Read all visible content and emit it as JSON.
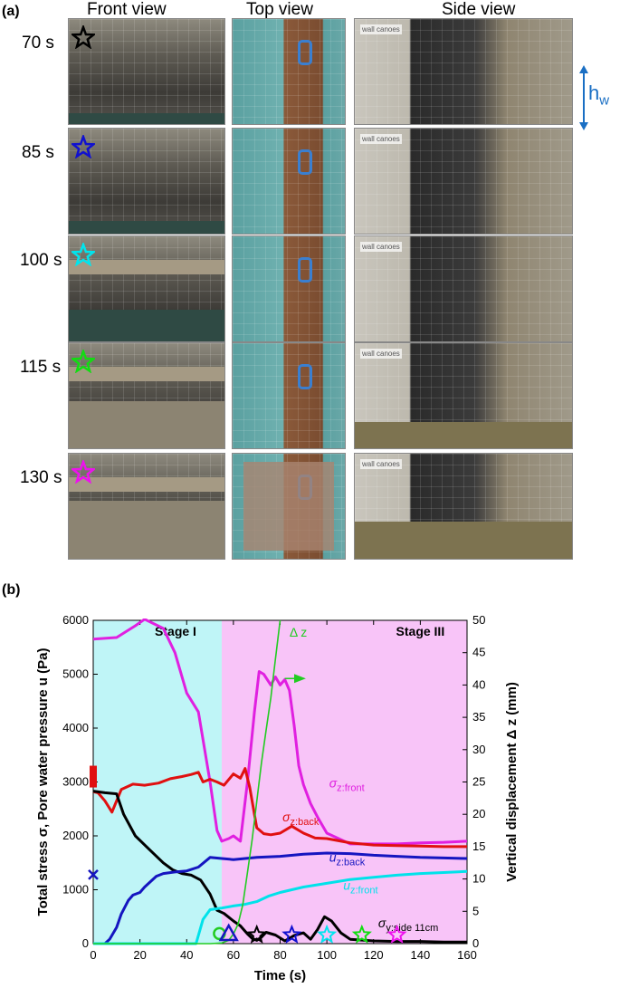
{
  "panel_a": {
    "label": "(a)",
    "columns": [
      "Front view",
      "Top view",
      "Side view"
    ],
    "rows": [
      {
        "time": "70 s",
        "star_color": "#000000"
      },
      {
        "time": "85 s",
        "star_color": "#1010d0"
      },
      {
        "time": "100 s",
        "star_color": "#00e5ee"
      },
      {
        "time": "115 s",
        "star_color": "#11dd11"
      },
      {
        "time": "130 s",
        "star_color": "#ee11ee"
      }
    ],
    "side_tag": "wall canoes",
    "hw_label": "h",
    "hw_sub": "w"
  },
  "panel_b": {
    "label": "(b)"
  },
  "chart_data": {
    "type": "line",
    "xlabel": "Time (s)",
    "ylabel_left": "Total stress σ, Pore water pressure u (Pa)",
    "ylabel_right": "Vertical displacement Δ z (mm)",
    "xlim": [
      0,
      160
    ],
    "ylim_left": [
      0,
      6000
    ],
    "ylim_right": [
      0,
      50
    ],
    "xticks": [
      0,
      20,
      40,
      60,
      80,
      100,
      120,
      140,
      160
    ],
    "yticks_left": [
      0,
      1000,
      2000,
      3000,
      4000,
      5000,
      6000
    ],
    "yticks_right": [
      0,
      5,
      10,
      15,
      20,
      25,
      30,
      35,
      40,
      45,
      50
    ],
    "stages": [
      {
        "label": "Stage I",
        "x0": 0,
        "x1": 55,
        "color": "#bff5f7"
      },
      {
        "label": "Stage III",
        "x0": 55,
        "x1": 160,
        "color": "#f8c4f8"
      }
    ],
    "series": [
      {
        "name": "σz:front",
        "label_main": "σ",
        "label_sub": "z:front",
        "color": "#e020e0",
        "axis": "left",
        "x": [
          0,
          10,
          18,
          22,
          30,
          35,
          40,
          45,
          50,
          53,
          55,
          58,
          60,
          63,
          66,
          69,
          71,
          73,
          76,
          78,
          80,
          82,
          84,
          86,
          88,
          90,
          93,
          96,
          100,
          110,
          120,
          130,
          140,
          150,
          160
        ],
        "y": [
          5650,
          5680,
          5900,
          6020,
          5850,
          5400,
          4650,
          4300,
          3000,
          2100,
          1900,
          1950,
          2000,
          1900,
          3000,
          4300,
          5050,
          5000,
          4800,
          4950,
          4800,
          4900,
          4700,
          4050,
          3300,
          2950,
          2600,
          2350,
          2050,
          1850,
          1850,
          1850,
          1870,
          1880,
          1900
        ]
      },
      {
        "name": "σz:back",
        "label_main": "σ",
        "label_sub": "z:back",
        "color": "#e01010",
        "axis": "left",
        "x": [
          0,
          2,
          5,
          8,
          12,
          17,
          22,
          28,
          33,
          38,
          42,
          45,
          47,
          50,
          53,
          56,
          60,
          63,
          65,
          67,
          70,
          73,
          76,
          80,
          85,
          90,
          95,
          100,
          110,
          120,
          130,
          140,
          150,
          160
        ],
        "y": [
          2820,
          2800,
          2650,
          2440,
          2860,
          2960,
          2940,
          2980,
          3060,
          3100,
          3140,
          3180,
          3000,
          3050,
          3000,
          2940,
          3150,
          3070,
          3250,
          2900,
          2150,
          2040,
          2020,
          2050,
          2180,
          2050,
          1960,
          1950,
          1870,
          1830,
          1820,
          1810,
          1800,
          1800
        ]
      },
      {
        "name": "σy:side 11cm",
        "label_main": "σ",
        "label_sub": "y:side 11cm",
        "color": "#000000",
        "axis": "left",
        "x": [
          0,
          5,
          10,
          13,
          18,
          24,
          30,
          34,
          38,
          42,
          46,
          50,
          53,
          56,
          60,
          63,
          66,
          68,
          70,
          72,
          74,
          78,
          82,
          86,
          90,
          93,
          96,
          99,
          102,
          106,
          110,
          120,
          130,
          140,
          150,
          160
        ],
        "y": [
          2830,
          2800,
          2780,
          2400,
          2000,
          1750,
          1500,
          1370,
          1300,
          1270,
          1180,
          920,
          620,
          560,
          420,
          330,
          180,
          100,
          60,
          120,
          210,
          160,
          50,
          150,
          200,
          80,
          260,
          500,
          420,
          200,
          80,
          50,
          40,
          40,
          30,
          30
        ]
      },
      {
        "name": "uz:back",
        "label_main": "u",
        "label_sub": "z:back",
        "color": "#1515c0",
        "axis": "left",
        "x": [
          0,
          5,
          7,
          10,
          12,
          15,
          17,
          20,
          22,
          27,
          30,
          35,
          40,
          45,
          50,
          55,
          60,
          65,
          70,
          80,
          90,
          100,
          110,
          120,
          130,
          140,
          150,
          160
        ],
        "y": [
          0,
          0,
          80,
          300,
          550,
          800,
          900,
          950,
          1050,
          1250,
          1300,
          1330,
          1350,
          1420,
          1600,
          1580,
          1560,
          1580,
          1600,
          1620,
          1660,
          1680,
          1670,
          1640,
          1620,
          1600,
          1590,
          1580
        ]
      },
      {
        "name": "uz:front",
        "label_main": "u",
        "label_sub": "z:front",
        "color": "#00e2ea",
        "axis": "left",
        "x": [
          0,
          40,
          44,
          47,
          50,
          55,
          60,
          65,
          70,
          75,
          80,
          90,
          100,
          110,
          120,
          130,
          140,
          150,
          160
        ],
        "y": [
          0,
          0,
          0,
          450,
          630,
          660,
          700,
          730,
          780,
          880,
          950,
          1050,
          1120,
          1190,
          1230,
          1270,
          1300,
          1320,
          1340
        ]
      },
      {
        "name": "Δ z",
        "label_main": "Δ z",
        "label_sub": "",
        "color": "#22cc22",
        "axis": "right",
        "x": [
          0,
          40,
          50,
          55,
          58,
          60,
          62,
          64,
          66,
          68,
          70,
          72,
          74,
          76,
          78,
          79,
          80
        ],
        "y": [
          0,
          0,
          0,
          0.1,
          0.5,
          1.5,
          3,
          6,
          11,
          16,
          22,
          28,
          33,
          38,
          44,
          47,
          50
        ]
      }
    ],
    "markers": [
      {
        "name": "initial-sigma-back-marker",
        "shape": "rect",
        "x": 0,
        "y": 3100,
        "color": "#e01010"
      },
      {
        "name": "initial-u-back-marker",
        "shape": "x",
        "x": 0,
        "y": 1280,
        "color": "#1515c0"
      },
      {
        "name": "circle-marker",
        "shape": "circle",
        "x": 54,
        "y": 120,
        "color": "#22cc22"
      },
      {
        "name": "triangle-marker",
        "shape": "triangle",
        "x": 58,
        "y": 100,
        "color": "#1515c0"
      },
      {
        "name": "star-70",
        "shape": "star",
        "x": 70,
        "y": 60,
        "color": "#000000"
      },
      {
        "name": "star-85",
        "shape": "star",
        "x": 85,
        "y": 60,
        "color": "#1010d0"
      },
      {
        "name": "star-100",
        "shape": "star",
        "x": 100,
        "y": 60,
        "color": "#00e5ee"
      },
      {
        "name": "star-115",
        "shape": "star",
        "x": 115,
        "y": 60,
        "color": "#11dd11"
      },
      {
        "name": "star-130",
        "shape": "star",
        "x": 130,
        "y": 60,
        "color": "#ee11ee"
      }
    ]
  }
}
